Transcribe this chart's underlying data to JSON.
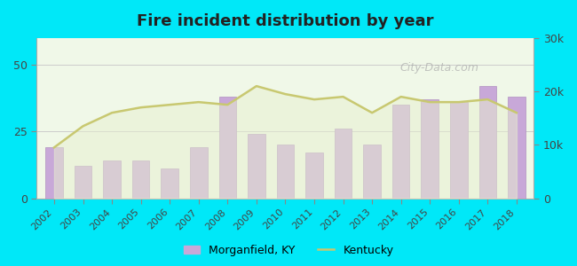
{
  "title": "Fire incident distribution by year",
  "years": [
    2002,
    2003,
    2004,
    2005,
    2006,
    2007,
    2008,
    2009,
    2010,
    2011,
    2012,
    2013,
    2014,
    2015,
    2016,
    2017,
    2018
  ],
  "bar_values": [
    19,
    12,
    14,
    14,
    11,
    19,
    38,
    24,
    20,
    17,
    26,
    20,
    35,
    37,
    36,
    42,
    38
  ],
  "ky_values": [
    9500,
    13500,
    16000,
    17000,
    17500,
    18000,
    17500,
    21000,
    19500,
    18500,
    19000,
    16000,
    19000,
    18000,
    18000,
    18500,
    16000
  ],
  "bar_color": "#c8a8d8",
  "bar_edge_color": "#b090c0",
  "line_color": "#c8c870",
  "line_fill_color": "#e8f0d0",
  "background_color": "#f0f8e8",
  "outer_background": "#00e8f8",
  "left_ylim": [
    0,
    60
  ],
  "right_ylim": [
    0,
    30000
  ],
  "left_yticks": [
    0,
    25,
    50
  ],
  "right_yticks": [
    0,
    10000,
    20000,
    30000
  ],
  "right_yticklabels": [
    "0",
    "10k",
    "20k",
    "30k"
  ],
  "watermark": "City-Data.com",
  "legend_bar_label": "Morganfield, KY",
  "legend_line_label": "Kentucky"
}
